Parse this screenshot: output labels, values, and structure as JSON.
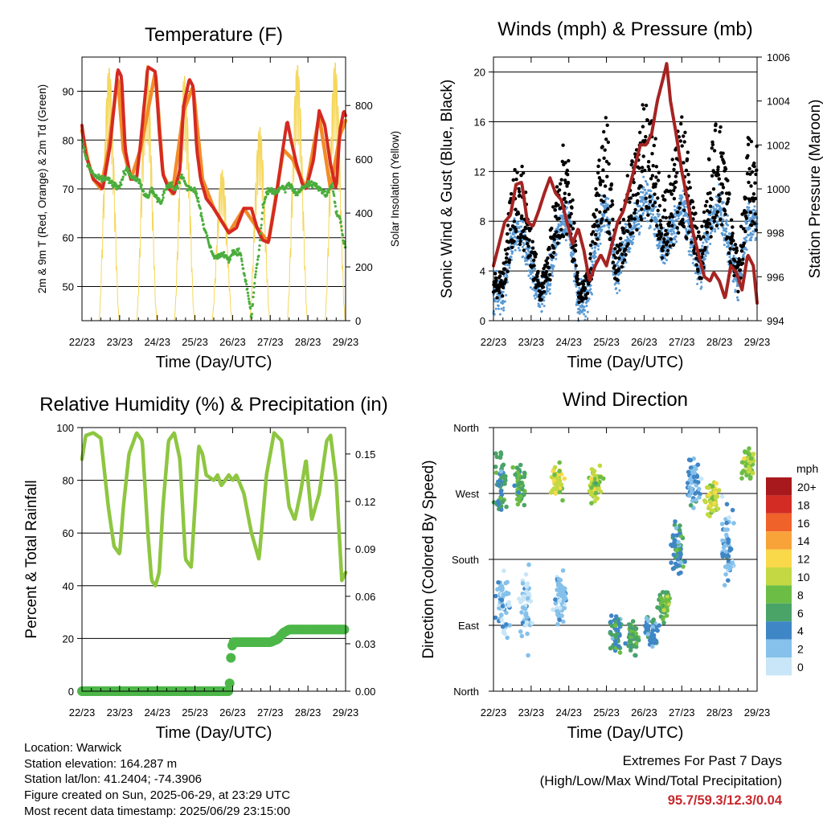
{
  "time_ticks": [
    "22/23",
    "23/23",
    "24/23",
    "25/23",
    "26/23",
    "27/23",
    "28/23",
    "29/23"
  ],
  "xlabel": "Time (Day/UTC)",
  "colors": {
    "temp_red": "#d42a22",
    "temp_orange": "#f28c28",
    "dewpoint_green": "#4aad3c",
    "solar_yellow": "#f5d75a",
    "gust_black": "#000000",
    "wind_blue": "#5b9bd5",
    "pressure_maroon": "#a52422",
    "rh_green": "#8ec641",
    "precip_green": "#4cb748",
    "extremes_red": "#c8282d"
  },
  "chart_data": [
    {
      "id": "temperature",
      "type": "line",
      "title": "Temperature (F)",
      "ylabel_left": "2m & 9m T (Red, Orange) & 2m Td (Green)",
      "ylabel_right": "Solar Insolation (Yellow)",
      "ylim": [
        43,
        97
      ],
      "yticks": [
        50,
        60,
        70,
        80,
        90
      ],
      "ylim_right": [
        0,
        980
      ],
      "yticks_right": [
        0,
        200,
        400,
        600,
        800
      ],
      "xlim": [
        0,
        7
      ],
      "grid": true,
      "series": [
        {
          "color": "temp_red",
          "x": [
            0,
            0.1,
            0.3,
            0.45,
            0.55,
            0.75,
            0.95,
            1.05,
            1.15,
            1.3,
            1.45,
            1.55,
            1.75,
            1.95,
            2.05,
            2.15,
            2.3,
            2.45,
            2.6,
            2.7,
            2.85,
            2.95,
            3.05,
            3.15,
            3.3,
            3.5,
            3.7,
            3.9,
            4.1,
            4.3,
            4.5,
            4.65,
            4.8,
            4.95,
            5.15,
            5.35,
            5.45,
            5.55,
            5.7,
            5.85,
            5.95,
            6.15,
            6.3,
            6.45,
            6.6,
            6.75,
            6.85,
            6.95,
            7
          ],
          "y": [
            83,
            77,
            72,
            71,
            70,
            79,
            94.5,
            93,
            78,
            72,
            72,
            79,
            95,
            94,
            82,
            73,
            70,
            69,
            74,
            87,
            92.5,
            91,
            78,
            72,
            68,
            66,
            63.5,
            61,
            62,
            66,
            66,
            62,
            59.5,
            59,
            68,
            79,
            84,
            80,
            75,
            71,
            70,
            76,
            86,
            83,
            75,
            70,
            82,
            86,
            85
          ]
        },
        {
          "color": "temp_orange",
          "x": [
            0,
            0.15,
            0.3,
            0.5,
            0.7,
            0.95,
            1.1,
            1.3,
            1.55,
            1.95,
            2.15,
            2.4,
            2.7,
            2.95,
            3.2,
            3.5,
            3.9,
            4.3,
            4.65,
            4.95,
            5.35,
            5.6,
            5.95,
            6.3,
            6.6,
            6.85,
            7
          ],
          "y": [
            82,
            76,
            72,
            70,
            78,
            93,
            78,
            72,
            78,
            94,
            73,
            69,
            86,
            91,
            72,
            66,
            61,
            66,
            62,
            59,
            78,
            76,
            70,
            85,
            70,
            81,
            84
          ]
        },
        {
          "color": "dewpoint_green",
          "x": [
            0,
            0.15,
            0.3,
            0.5,
            0.7,
            0.85,
            1.0,
            1.1,
            1.2,
            1.35,
            1.5,
            1.6,
            1.75,
            1.85,
            2.0,
            2.1,
            2.2,
            2.35,
            2.5,
            2.65,
            2.8,
            3.0,
            3.1,
            3.25,
            3.4,
            3.5,
            3.6,
            3.75,
            3.9,
            4.0,
            4.2,
            4.4,
            4.5,
            4.6,
            4.7,
            4.8,
            4.9,
            5.0,
            5.1,
            5.25,
            5.4,
            5.5,
            5.7,
            5.85,
            6.0,
            6.15,
            6.3,
            6.5,
            6.65,
            6.75,
            6.85,
            6.95,
            7
          ],
          "y": [
            80,
            75,
            73,
            72,
            72,
            71,
            70,
            73,
            74,
            72,
            72,
            70,
            68,
            70,
            68,
            67,
            70,
            71,
            70,
            73,
            70,
            70,
            67,
            62,
            58,
            56,
            56,
            57,
            55,
            57,
            57,
            49,
            44,
            52,
            57,
            66,
            69,
            70,
            69,
            70,
            70,
            71,
            69,
            70,
            71,
            71,
            70,
            69,
            71,
            65,
            64,
            59,
            58
          ]
        },
        {
          "color": "solar_yellow",
          "axis": "right",
          "kind": "daily_pulses",
          "days": [
            0.72,
            1.72,
            2.72,
            3.72,
            4.72,
            5.72,
            6.72
          ],
          "peaks": [
            940,
            950,
            910,
            560,
            720,
            950,
            960
          ]
        }
      ]
    },
    {
      "id": "winds",
      "type": "scatter",
      "title": "Winds (mph) & Pressure (mb)",
      "ylabel_left": "Sonic Wind & Gust (Blue, Black)",
      "ylabel_right": "Station Pressure (Maroon)",
      "ylim": [
        0,
        21.2
      ],
      "yticks": [
        0,
        4,
        8,
        12,
        16,
        20
      ],
      "ylim_right": [
        994,
        1006
      ],
      "yticks_right": [
        994,
        996,
        998,
        1000,
        1002,
        1004,
        1006
      ],
      "xlim": [
        0,
        7
      ],
      "grid": true,
      "gust_envelope": {
        "x": [
          0,
          0.25,
          0.5,
          0.75,
          1.0,
          1.25,
          1.5,
          1.75,
          2.0,
          2.25,
          2.5,
          2.75,
          3.0,
          3.25,
          3.5,
          3.75,
          4.0,
          4.25,
          4.5,
          4.75,
          5.0,
          5.25,
          5.5,
          5.75,
          6.0,
          6.25,
          6.5,
          6.75,
          7
        ],
        "y": [
          4,
          4,
          12,
          13,
          8,
          3,
          7,
          14,
          15,
          3,
          4,
          12,
          17,
          6,
          11,
          14,
          18,
          16,
          10,
          13,
          17,
          12,
          7,
          14,
          17,
          11,
          5,
          15,
          14
        ]
      },
      "series": [
        {
          "name": "Station Pressure",
          "color": "pressure_maroon",
          "axis": "right",
          "x": [
            0,
            0.15,
            0.3,
            0.45,
            0.6,
            0.75,
            0.9,
            1.05,
            1.2,
            1.35,
            1.5,
            1.65,
            1.8,
            1.95,
            2.1,
            2.25,
            2.4,
            2.55,
            2.7,
            2.85,
            3.0,
            3.15,
            3.3,
            3.45,
            3.6,
            3.75,
            3.9,
            4.05,
            4.2,
            4.35,
            4.5,
            4.6,
            4.7,
            4.85,
            5.0,
            5.15,
            5.3,
            5.45,
            5.6,
            5.75,
            5.85,
            6.0,
            6.15,
            6.3,
            6.45,
            6.6,
            6.75,
            6.9,
            7
          ],
          "y": [
            996.5,
            997.5,
            998.5,
            998.8,
            1000.2,
            1000.3,
            998.5,
            998.3,
            999.0,
            999.8,
            1000.5,
            999.8,
            999.5,
            998.5,
            997.5,
            998.2,
            997.2,
            995.8,
            996.5,
            997.0,
            996.5,
            997.5,
            998.5,
            999.0,
            1000.0,
            1001.0,
            1002.0,
            1002.0,
            1002.5,
            1004.0,
            1005.0,
            1005.7,
            1004.0,
            1002.5,
            1000.8,
            999.5,
            998.0,
            997.0,
            996.0,
            995.8,
            996.2,
            995.8,
            995.0,
            996.5,
            996.2,
            995.4,
            997.0,
            996.5,
            994.8
          ]
        }
      ]
    },
    {
      "id": "humidity",
      "type": "line",
      "title": "Relative Humidity (%) & Precipitation (in)",
      "ylabel_left": "Percent & Total Rainfall",
      "ylim": [
        0,
        100
      ],
      "yticks": [
        0,
        20,
        40,
        60,
        80,
        100
      ],
      "ylim_right": [
        0,
        0.1667
      ],
      "yticks_right": [
        "0.00",
        "0.03",
        "0.06",
        "0.09",
        "0.12",
        "0.15"
      ],
      "xlim": [
        0,
        7
      ],
      "grid": true,
      "series": [
        {
          "name": "Relative Humidity",
          "color": "rh_green",
          "x": [
            0,
            0.1,
            0.3,
            0.5,
            0.7,
            0.85,
            1.0,
            1.1,
            1.25,
            1.45,
            1.6,
            1.75,
            1.85,
            1.95,
            2.05,
            2.15,
            2.3,
            2.45,
            2.6,
            2.75,
            2.9,
            3.0,
            3.1,
            3.2,
            3.3,
            3.5,
            3.6,
            3.7,
            3.9,
            4.0,
            4.1,
            4.3,
            4.5,
            4.7,
            4.9,
            5.1,
            5.3,
            5.5,
            5.65,
            5.8,
            5.95,
            6.1,
            6.3,
            6.5,
            6.6,
            6.75,
            6.9,
            7
          ],
          "y": [
            88,
            97,
            98,
            96,
            70,
            55,
            52,
            70,
            90,
            98,
            95,
            60,
            42,
            40,
            45,
            70,
            95,
            98,
            88,
            50,
            47,
            70,
            93,
            90,
            82,
            80,
            82,
            78,
            82,
            80,
            82,
            75,
            60,
            50,
            82,
            98,
            95,
            70,
            65,
            75,
            88,
            65,
            75,
            95,
            97,
            80,
            42,
            45
          ]
        },
        {
          "name": "Total Precipitation",
          "color": "precip_green",
          "axis": "right",
          "x": [
            0,
            3.9,
            3.92,
            3.95,
            4.0,
            4.2,
            5.0,
            5.2,
            5.35,
            5.5,
            6.0,
            7
          ],
          "y": [
            0,
            0,
            0.005,
            0.02,
            0.031,
            0.031,
            0.031,
            0.033,
            0.037,
            0.039,
            0.039,
            0.039
          ]
        }
      ]
    },
    {
      "id": "direction",
      "type": "scatter",
      "title": "Wind Direction",
      "ylabel_left": "Direction (Colored By Speed)",
      "yticks_labels": [
        "North",
        "East",
        "South",
        "West",
        "North"
      ],
      "ylim": [
        0,
        360
      ],
      "xlim": [
        0,
        7
      ],
      "grid": true,
      "colorbar": {
        "unit": "mph",
        "labels": [
          "0",
          "2",
          "4",
          "6",
          "8",
          "10",
          "12",
          "14",
          "16",
          "18",
          "20+"
        ],
        "colors": [
          "#c8e6f8",
          "#85c1ea",
          "#3f86c6",
          "#4aa467",
          "#6cbd45",
          "#c3d842",
          "#f9d84a",
          "#f8a23a",
          "#ef6229",
          "#d32c24",
          "#a8191e"
        ]
      },
      "clusters": [
        {
          "x": 0.2,
          "dir": 285,
          "spread": 60,
          "speed": 5
        },
        {
          "x": 0.7,
          "dir": 280,
          "spread": 45,
          "speed": 7
        },
        {
          "x": 1.7,
          "dir": 285,
          "spread": 35,
          "speed": 10
        },
        {
          "x": 2.7,
          "dir": 285,
          "spread": 35,
          "speed": 10
        },
        {
          "x": 0.25,
          "dir": 120,
          "spread": 70,
          "speed": 2
        },
        {
          "x": 0.85,
          "dir": 110,
          "spread": 70,
          "speed": 1
        },
        {
          "x": 1.8,
          "dir": 120,
          "spread": 60,
          "speed": 2
        },
        {
          "x": 3.25,
          "dir": 80,
          "spread": 40,
          "speed": 5
        },
        {
          "x": 3.7,
          "dir": 75,
          "spread": 35,
          "speed": 6
        },
        {
          "x": 4.2,
          "dir": 80,
          "spread": 35,
          "speed": 4
        },
        {
          "x": 4.55,
          "dir": 120,
          "spread": 30,
          "speed": 7
        },
        {
          "x": 4.9,
          "dir": 190,
          "spread": 50,
          "speed": 5
        },
        {
          "x": 5.3,
          "dir": 290,
          "spread": 60,
          "speed": 3
        },
        {
          "x": 5.8,
          "dir": 265,
          "spread": 40,
          "speed": 10
        },
        {
          "x": 6.2,
          "dir": 200,
          "spread": 80,
          "speed": 3
        },
        {
          "x": 6.75,
          "dir": 310,
          "spread": 30,
          "speed": 9
        }
      ]
    }
  ],
  "info": {
    "location": "Location: Warwick",
    "elevation": "Station elevation: 164.287 m",
    "latlon": "Station lat/lon: 41.2404; -74.3906",
    "created": "Figure created on Sun, 2025-06-29, at 23:29 UTC",
    "latest": "Most recent data timestamp: 2025/06/29 23:15:00"
  },
  "extremes": {
    "title": "Extremes For Past 7 Days",
    "subtitle": "(High/Low/Max Wind/Total Precipitation)",
    "values": "95.7/59.3/12.3/0.04"
  }
}
